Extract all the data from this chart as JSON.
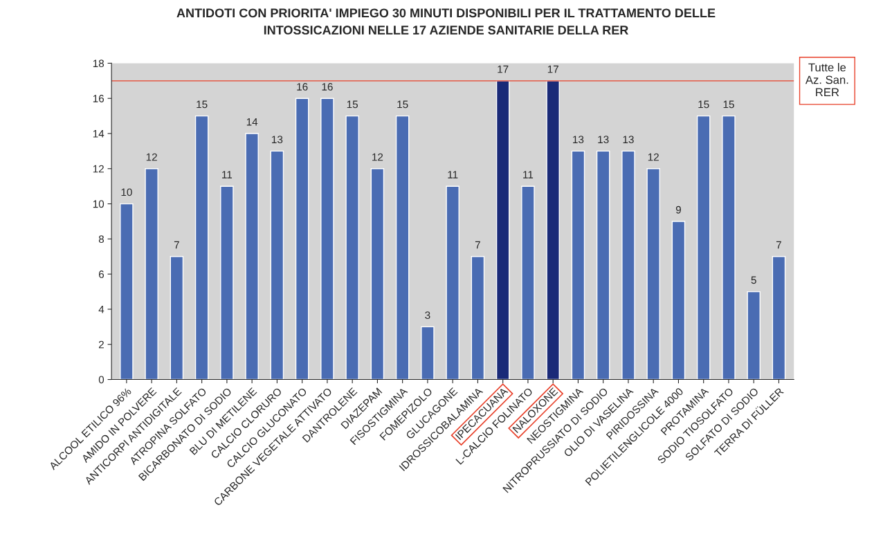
{
  "chart_data": {
    "type": "bar",
    "title": "ANTIDOTI CON PRIORITA' IMPIEGO 30 MINUTI DISPONIBILI PER IL TRATTAMENTO DELLE\nINTOSSICAZIONI NELLE 17 AZIENDE SANITARIE DELLA RER",
    "categories": [
      "ALCOOL ETILICO 96%",
      "AMIDO IN POLVERE",
      "ANTICORPI ANTIDIGITALE",
      "ATROPINA SOLFATO",
      "BICARBONATO DI SODIO",
      "BLU DI METILENE",
      "CALCIO CLORURO",
      "CALCIO GLUCONATO",
      "CARBONE VEGETALE ATTIVATO",
      "DANTROLENE",
      "DIAZEPAM",
      "FISOSTIGMINA",
      "FOMEPIZOLO",
      "GLUCAGONE",
      "IDROSSICOBALAMINA",
      "IPECACUANA",
      "L-CALCIO FOLINATO",
      "NALOXONE",
      "NEOSTIGMINA",
      "NITROPRUSSIATO DI SODIO",
      "OLIO DI VASELINA",
      "PIRIDOSSINA",
      "POLIETILENGLICOLE 4000",
      "PROTAMINA",
      "SODIO TIOSOLFATO",
      "SOLFATO DI SODIO",
      "TERRA DI FÜLLER"
    ],
    "values": [
      10,
      12,
      7,
      15,
      11,
      14,
      13,
      16,
      16,
      15,
      12,
      15,
      3,
      11,
      7,
      17,
      11,
      17,
      13,
      13,
      13,
      12,
      9,
      15,
      15,
      5,
      7
    ],
    "colors": [
      "#4a6cb3",
      "#4a6cb3",
      "#4a6cb3",
      "#4a6cb3",
      "#4a6cb3",
      "#4a6cb3",
      "#4a6cb3",
      "#4a6cb3",
      "#4a6cb3",
      "#4a6cb3",
      "#4a6cb3",
      "#4a6cb3",
      "#4a6cb3",
      "#4a6cb3",
      "#4a6cb3",
      "#1a2a78",
      "#4a6cb3",
      "#1a2a78",
      "#4a6cb3",
      "#4a6cb3",
      "#4a6cb3",
      "#4a6cb3",
      "#4a6cb3",
      "#4a6cb3",
      "#4a6cb3",
      "#4a6cb3",
      "#4a6cb3"
    ],
    "ylim": [
      0,
      18
    ],
    "yticks": [
      0,
      2,
      4,
      6,
      8,
      10,
      12,
      14,
      16,
      18
    ],
    "grid": false,
    "data_labels": true,
    "ref_lines": [
      {
        "axis": "y",
        "value": 17,
        "label": "Tutte le\nAz. San.\nRER",
        "color": "#e8402a"
      }
    ]
  }
}
